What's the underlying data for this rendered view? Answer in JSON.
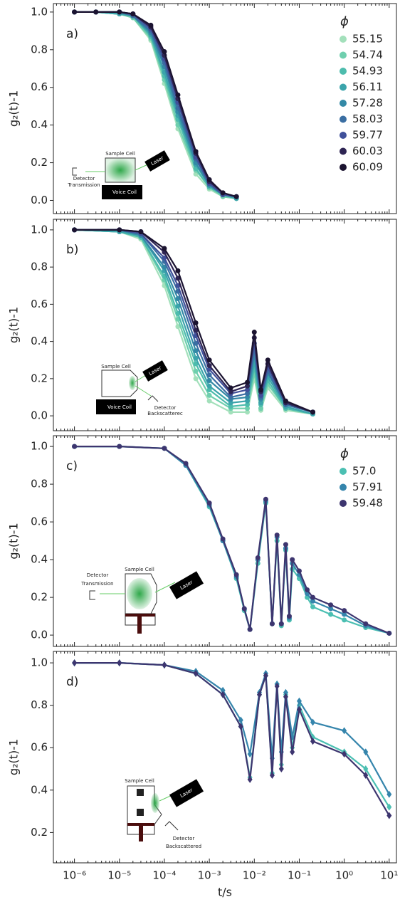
{
  "chart_data": [
    {
      "type": "line",
      "label": "a)",
      "ylabel": "g₂(t)-1",
      "xscale": "log",
      "marker": "circle",
      "legend": true,
      "legend_title": "ϕ",
      "legend_position": "upper right",
      "xlim": [
        3.4e-07,
        14.5
      ],
      "xticks": [
        1e-06,
        1e-05,
        0.0001,
        0.001,
        0.01,
        0.1,
        1,
        10
      ],
      "ylim": [
        -0.07,
        1.045
      ],
      "yticks": [
        {
          "value": 0,
          "label": "0.0"
        },
        0.2,
        0.4,
        0.6,
        0.8,
        {
          "value": 1,
          "label": "1.0"
        }
      ],
      "inset_labels": [
        "Sample Cell",
        "Laser",
        "Detector",
        "Transmission",
        "Voice Coil"
      ],
      "x": [
        1e-06,
        3e-06,
        1e-05,
        2e-05,
        5e-05,
        0.0001,
        0.0002,
        0.0005,
        0.001,
        0.002,
        0.004
      ],
      "series": [
        {
          "name": "55.15",
          "color": "#a3e0bb",
          "values": [
            1,
            1,
            0.99,
            0.97,
            0.85,
            0.62,
            0.38,
            0.14,
            0.06,
            0.02,
            0.01
          ]
        },
        {
          "name": "54.74",
          "color": "#6fcfae",
          "values": [
            1,
            1,
            0.99,
            0.97,
            0.86,
            0.64,
            0.4,
            0.16,
            0.07,
            0.02,
            0.01
          ]
        },
        {
          "name": "54.93",
          "color": "#4dbcad",
          "values": [
            1,
            1,
            0.99,
            0.98,
            0.87,
            0.66,
            0.43,
            0.17,
            0.07,
            0.03,
            0.01
          ]
        },
        {
          "name": "56.11",
          "color": "#3ba4ab",
          "values": [
            1,
            1,
            0.99,
            0.98,
            0.88,
            0.68,
            0.45,
            0.19,
            0.08,
            0.03,
            0.01
          ]
        },
        {
          "name": "57.28",
          "color": "#3389a6",
          "values": [
            1,
            1,
            1,
            0.98,
            0.89,
            0.71,
            0.47,
            0.2,
            0.08,
            0.03,
            0.02
          ]
        },
        {
          "name": "58.03",
          "color": "#3a6ea2",
          "values": [
            1,
            1,
            1,
            0.98,
            0.9,
            0.73,
            0.49,
            0.22,
            0.09,
            0.03,
            0.02
          ]
        },
        {
          "name": "59.77",
          "color": "#40509a",
          "values": [
            1,
            1,
            1,
            0.99,
            0.91,
            0.75,
            0.52,
            0.23,
            0.09,
            0.03,
            0.02
          ]
        },
        {
          "name": "60.03",
          "color": "#2e2453",
          "values": [
            1,
            1,
            1,
            0.99,
            0.92,
            0.77,
            0.54,
            0.25,
            0.1,
            0.04,
            0.02
          ]
        },
        {
          "name": "60.09",
          "color": "#1b1330",
          "values": [
            1,
            1,
            1,
            0.99,
            0.93,
            0.79,
            0.56,
            0.26,
            0.11,
            0.04,
            0.02
          ]
        }
      ]
    },
    {
      "type": "line",
      "label": "b)",
      "ylabel": "g₂(t)-1",
      "xscale": "log",
      "marker": "circle",
      "legend": false,
      "xlim": [
        3.4e-07,
        14.5
      ],
      "xticks": [
        1e-06,
        1e-05,
        0.0001,
        0.001,
        0.01,
        0.1,
        1,
        10
      ],
      "ylim": [
        -0.08,
        1.057
      ],
      "yticks": [
        {
          "value": 0,
          "label": "0.0"
        },
        0.2,
        0.4,
        0.6,
        0.8,
        {
          "value": 1,
          "label": "1.0"
        }
      ],
      "inset_labels": [
        "Sample Cell",
        "Laser",
        "Voice Coil",
        "Detector",
        "Backscatterec"
      ],
      "x": [
        1e-06,
        1e-05,
        3e-05,
        0.0001,
        0.0002,
        0.0005,
        0.001,
        0.003,
        0.007,
        0.01,
        0.014,
        0.02,
        0.05,
        0.2
      ],
      "series": [
        {
          "color": "#a3e0bb",
          "values": [
            1,
            0.99,
            0.95,
            0.7,
            0.48,
            0.2,
            0.08,
            0.02,
            0.02,
            0.2,
            0.03,
            0.15,
            0.03,
            0.01
          ]
        },
        {
          "color": "#6fcfae",
          "values": [
            1,
            0.99,
            0.96,
            0.73,
            0.52,
            0.24,
            0.11,
            0.04,
            0.04,
            0.23,
            0.04,
            0.17,
            0.04,
            0.01
          ]
        },
        {
          "color": "#4dbcad",
          "values": [
            1,
            0.99,
            0.96,
            0.75,
            0.55,
            0.28,
            0.14,
            0.05,
            0.06,
            0.26,
            0.06,
            0.19,
            0.04,
            0.01
          ]
        },
        {
          "color": "#3ba4ab",
          "values": [
            1,
            0.99,
            0.97,
            0.78,
            0.59,
            0.31,
            0.16,
            0.07,
            0.08,
            0.29,
            0.07,
            0.21,
            0.05,
            0.01
          ]
        },
        {
          "color": "#3389a6",
          "values": [
            1,
            1,
            0.97,
            0.8,
            0.63,
            0.35,
            0.19,
            0.09,
            0.1,
            0.33,
            0.09,
            0.23,
            0.06,
            0.02
          ]
        },
        {
          "color": "#3a6ea2",
          "values": [
            1,
            1,
            0.98,
            0.83,
            0.67,
            0.39,
            0.22,
            0.1,
            0.12,
            0.36,
            0.1,
            0.24,
            0.06,
            0.02
          ]
        },
        {
          "color": "#40509a",
          "values": [
            1,
            1,
            0.98,
            0.85,
            0.7,
            0.43,
            0.25,
            0.12,
            0.14,
            0.39,
            0.11,
            0.26,
            0.07,
            0.02
          ]
        },
        {
          "color": "#2e2453",
          "values": [
            1,
            1,
            0.99,
            0.88,
            0.74,
            0.46,
            0.27,
            0.13,
            0.16,
            0.42,
            0.13,
            0.28,
            0.07,
            0.02
          ]
        },
        {
          "color": "#1b1330",
          "values": [
            1,
            1,
            0.99,
            0.9,
            0.78,
            0.5,
            0.3,
            0.15,
            0.18,
            0.45,
            0.14,
            0.3,
            0.08,
            0.02
          ]
        }
      ]
    },
    {
      "type": "line",
      "label": "c)",
      "ylabel": "g₂(t)-1",
      "xscale": "log",
      "marker": "circle",
      "legend": true,
      "legend_title": "ϕ",
      "legend_position": "upper right",
      "xlim": [
        3.4e-07,
        14.5
      ],
      "xticks": [
        1e-06,
        1e-05,
        0.0001,
        0.001,
        0.01,
        0.1,
        1,
        10
      ],
      "ylim": [
        -0.06,
        1.057
      ],
      "yticks": [
        {
          "value": 0,
          "label": "0.0"
        },
        0.2,
        0.4,
        0.6,
        0.8,
        {
          "value": 1,
          "label": "1.0"
        }
      ],
      "inset_labels": [
        "Detector",
        "Transmission",
        "Sample Cell",
        "Laser"
      ],
      "x": [
        1e-06,
        1e-05,
        0.0001,
        0.0003,
        0.001,
        0.002,
        0.004,
        0.006,
        0.008,
        0.012,
        0.018,
        0.025,
        0.032,
        0.04,
        0.05,
        0.06,
        0.07,
        0.1,
        0.15,
        0.2,
        0.5,
        1,
        3,
        10
      ],
      "series": [
        {
          "name": "57.0",
          "color": "#4bbfb2",
          "values": [
            1,
            1,
            0.99,
            0.9,
            0.68,
            0.5,
            0.3,
            0.13,
            0.03,
            0.38,
            0.7,
            0.06,
            0.5,
            0.05,
            0.45,
            0.08,
            0.35,
            0.3,
            0.2,
            0.15,
            0.11,
            0.08,
            0.04,
            0.01
          ]
        },
        {
          "name": "57.91",
          "color": "#3585ac",
          "values": [
            1,
            1,
            0.99,
            0.9,
            0.69,
            0.5,
            0.31,
            0.14,
            0.03,
            0.4,
            0.71,
            0.06,
            0.52,
            0.06,
            0.46,
            0.09,
            0.38,
            0.32,
            0.22,
            0.18,
            0.14,
            0.11,
            0.05,
            0.01
          ]
        },
        {
          "name": "59.48",
          "color": "#3d356f",
          "values": [
            1,
            1,
            0.99,
            0.91,
            0.7,
            0.51,
            0.32,
            0.14,
            0.03,
            0.41,
            0.72,
            0.06,
            0.53,
            0.06,
            0.48,
            0.1,
            0.4,
            0.34,
            0.24,
            0.2,
            0.16,
            0.13,
            0.06,
            0.01
          ]
        }
      ]
    },
    {
      "type": "line",
      "label": "d)",
      "ylabel": "g₂(t)-1",
      "xlabel": "t/s",
      "xscale": "log",
      "marker": "diamond",
      "legend": false,
      "xlim": [
        3.4e-07,
        14.5
      ],
      "xticks": [
        {
          "value": 1e-06,
          "label": "10⁻⁶"
        },
        {
          "value": 1e-05,
          "label": "10⁻⁵"
        },
        {
          "value": 0.0001,
          "label": "10⁻⁴"
        },
        {
          "value": 0.001,
          "label": "10⁻³"
        },
        {
          "value": 0.01,
          "label": "10⁻²"
        },
        {
          "value": 0.1,
          "label": "10⁻¹"
        },
        {
          "value": 1,
          "label": "10⁰"
        },
        {
          "value": 10,
          "label": "10¹"
        }
      ],
      "ylim": [
        0.057,
        1.054
      ],
      "yticks": [
        0.2,
        0.4,
        0.6,
        0.8,
        {
          "value": 1,
          "label": "1.0"
        }
      ],
      "inset_labels": [
        "Sample Cell",
        "Laser",
        "Detector",
        "Backscattered"
      ],
      "x": [
        1e-06,
        1e-05,
        0.0001,
        0.0005,
        0.002,
        0.005,
        0.008,
        0.013,
        0.018,
        0.025,
        0.032,
        0.04,
        0.05,
        0.07,
        0.1,
        0.2,
        1,
        3,
        10
      ],
      "series": [
        {
          "color": "#4bbfb2",
          "values": [
            1,
            1,
            0.99,
            0.95,
            0.85,
            0.7,
            0.46,
            0.85,
            0.94,
            0.48,
            0.9,
            0.52,
            0.85,
            0.6,
            0.8,
            0.65,
            0.58,
            0.5,
            0.32
          ]
        },
        {
          "color": "#3585ac",
          "values": [
            1,
            1,
            0.99,
            0.96,
            0.87,
            0.73,
            0.57,
            0.86,
            0.95,
            0.55,
            0.9,
            0.58,
            0.86,
            0.65,
            0.82,
            0.72,
            0.68,
            0.58,
            0.38
          ]
        },
        {
          "color": "#3d356f",
          "values": [
            1,
            1,
            0.99,
            0.95,
            0.85,
            0.7,
            0.45,
            0.85,
            0.94,
            0.47,
            0.89,
            0.5,
            0.84,
            0.58,
            0.78,
            0.63,
            0.57,
            0.47,
            0.28
          ]
        }
      ]
    }
  ]
}
